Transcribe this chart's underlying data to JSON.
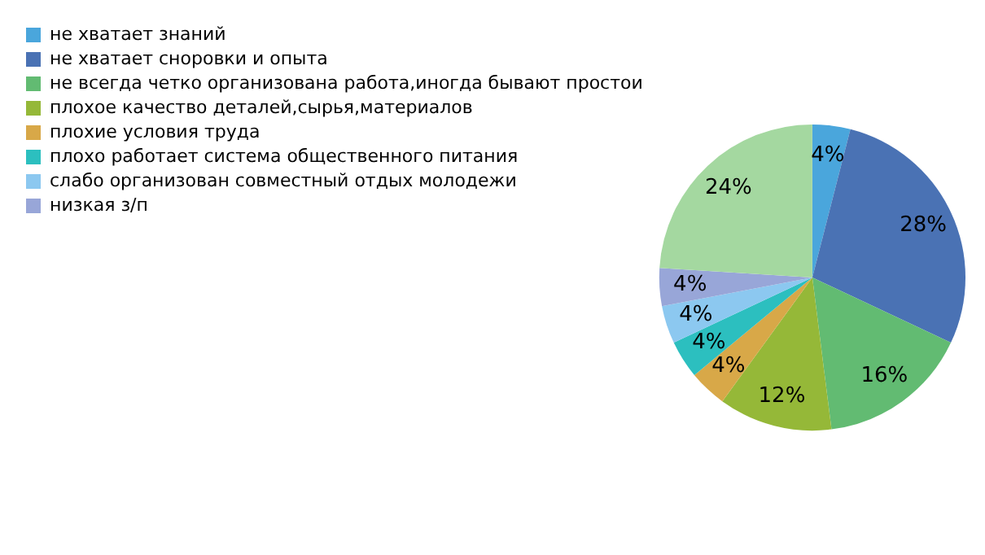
{
  "chart_data": {
    "type": "pie",
    "categories": [
      "не хватает знаний",
      "не хватает сноровки и опыта",
      "не всегда четко организована работа,иногда бывают простои",
      "плохое качество деталей,сырья,материалов",
      "плохие условия труда",
      "плохо работает система общественного питания",
      "слабо организован совместный отдых молодежи",
      "низкая з/п",
      null
    ],
    "values": [
      4,
      28,
      16,
      12,
      4,
      4,
      4,
      4,
      24
    ],
    "colors": [
      "#4aa6dc",
      "#4a72b4",
      "#62bb72",
      "#95b838",
      "#d8a848",
      "#2cbfbf",
      "#8cc8f0",
      "#98a6d8",
      "#a4d8a0"
    ],
    "value_labels": [
      "4%",
      "28%",
      "16%",
      "12%",
      "4%",
      "4%",
      "4%",
      "4%",
      "24%"
    ],
    "legend": "left"
  }
}
